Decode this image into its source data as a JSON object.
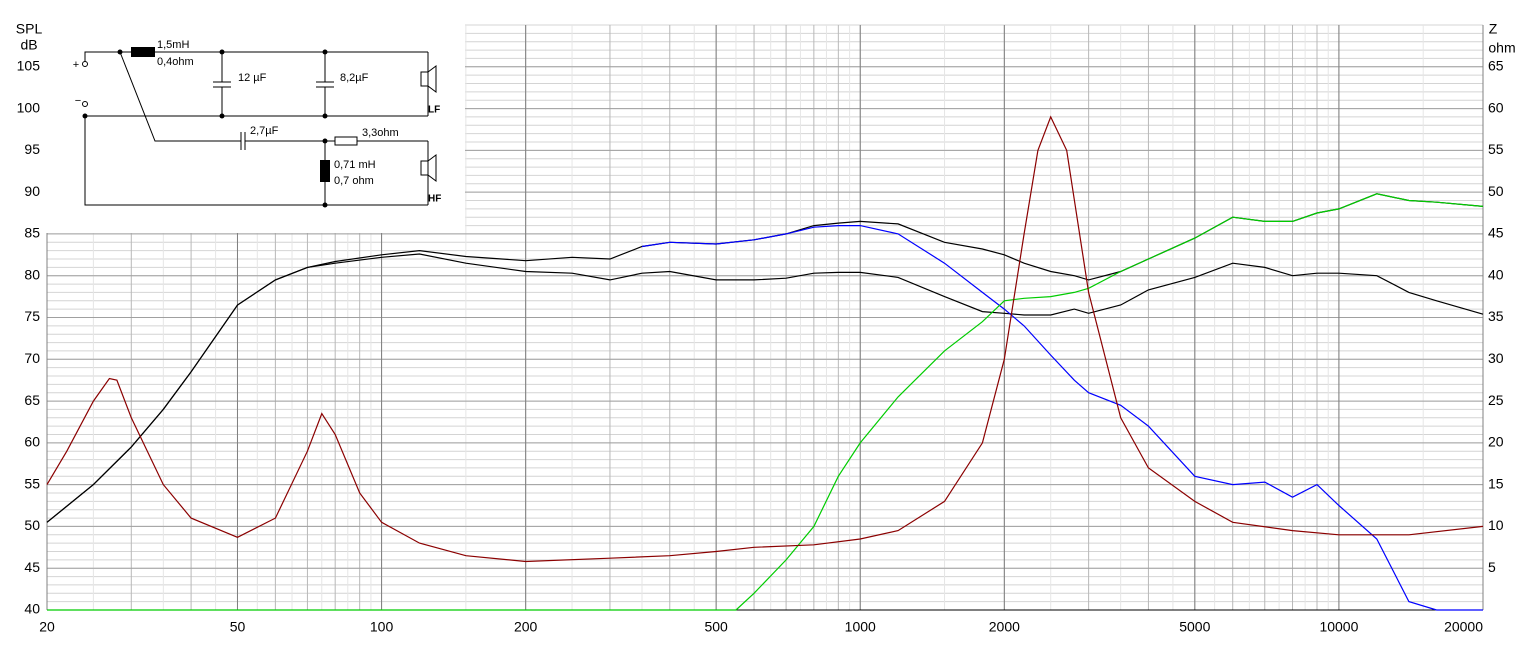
{
  "chart_data": {
    "type": "line",
    "xscale": "log",
    "grid": true,
    "minor_grid": true,
    "ylabel": [
      "SPL",
      "dB"
    ],
    "y2label": [
      "Z",
      "ohm"
    ],
    "xlim": [
      20,
      20000
    ],
    "xticks": [
      20,
      50,
      100,
      200,
      500,
      1000,
      2000,
      5000,
      10000,
      20000
    ],
    "ylim": [
      40,
      110
    ],
    "yticks": [
      40,
      45,
      50,
      55,
      60,
      65,
      70,
      75,
      80,
      85,
      90,
      95,
      100,
      105
    ],
    "y2lim": [
      0,
      70
    ],
    "y2ticks": [
      5,
      10,
      15,
      20,
      25,
      30,
      35,
      40,
      45,
      50,
      55,
      60,
      65
    ],
    "annotations": [
      "+",
      "−",
      "1,5mH",
      "0,4ohm",
      "12 µF",
      "8,2µF",
      "LF",
      "2,7µF",
      "3,3ohm",
      "0,71 mH",
      "0,7 ohm",
      "HF"
    ],
    "series": [
      {
        "color": "#000000",
        "x": [
          20,
          25,
          30,
          35,
          40,
          50,
          60,
          70,
          80,
          100,
          120,
          150,
          200,
          250,
          300,
          350,
          400,
          500,
          600,
          700,
          800,
          900,
          1000,
          1200,
          1500,
          1800,
          2000,
          2200,
          2500,
          2800,
          3000,
          3500,
          4000,
          5000,
          6000,
          7000,
          8000,
          9000,
          10000,
          12000,
          14000,
          16000,
          20000
        ],
        "values": [
          50.5,
          55,
          59.5,
          64,
          68.5,
          76.5,
          79.5,
          81,
          81.7,
          82.5,
          83,
          82.3,
          81.8,
          82.2,
          82,
          83.5,
          84,
          83.8,
          84.3,
          85,
          86,
          86.3,
          86.5,
          86.2,
          84,
          83.2,
          82.5,
          81.5,
          80.5,
          80,
          79.5,
          80.5,
          82,
          84.5,
          87,
          86.5,
          86.5,
          87.5,
          88,
          89.8,
          89,
          88.8,
          88.3
        ]
      },
      {
        "color": "#000000",
        "x": [
          20,
          25,
          30,
          35,
          40,
          50,
          60,
          70,
          80,
          100,
          120,
          150,
          200,
          250,
          300,
          350,
          400,
          500,
          600,
          700,
          800,
          900,
          1000,
          1200,
          1500,
          1800,
          2000,
          2200,
          2500,
          2800,
          3000,
          3500,
          4000,
          5000,
          6000,
          7000,
          8000,
          9000,
          10000,
          12000,
          14000,
          16000,
          20000
        ],
        "values": [
          50.5,
          55,
          59.5,
          64,
          68.5,
          76.5,
          79.5,
          81,
          81.5,
          82.2,
          82.6,
          81.5,
          80.5,
          80.3,
          79.5,
          80.3,
          80.5,
          79.5,
          79.5,
          79.7,
          80.3,
          80.4,
          80.4,
          79.8,
          77.5,
          75.7,
          75.5,
          75.3,
          75.3,
          76,
          75.5,
          76.5,
          78.3,
          79.8,
          81.5,
          81,
          80,
          80.3,
          80.3,
          80,
          78,
          77,
          75.4
        ]
      },
      {
        "color": "#0000ff",
        "x": [
          350,
          400,
          500,
          600,
          700,
          800,
          900,
          1000,
          1200,
          1500,
          1800,
          2000,
          2200,
          2500,
          2800,
          3000,
          3500,
          4000,
          5000,
          6000,
          7000,
          8000,
          9000,
          10000,
          12000,
          14000,
          16000,
          20000
        ],
        "values": [
          83.5,
          84,
          83.8,
          84.3,
          85,
          85.8,
          86,
          86,
          85,
          81.5,
          78,
          76,
          74,
          70.5,
          67.5,
          66,
          64.5,
          62,
          56,
          55,
          55.3,
          53.5,
          55,
          52.5,
          48.5,
          41,
          40,
          40
        ]
      },
      {
        "color": "#00cc00",
        "x": [
          20,
          550,
          600,
          700,
          800,
          900,
          1000,
          1200,
          1500,
          1800,
          2000,
          2200,
          2500,
          2800,
          3000,
          3500,
          4000,
          5000,
          6000,
          7000,
          8000,
          9000,
          10000,
          12000,
          14000,
          16000,
          20000
        ],
        "values": [
          40,
          40,
          42,
          46,
          50,
          56,
          60,
          65.5,
          71,
          74.5,
          77,
          77.3,
          77.5,
          78,
          78.5,
          80.5,
          82,
          84.5,
          87,
          86.5,
          86.5,
          87.5,
          88,
          89.8,
          89,
          88.8,
          88.3
        ]
      },
      {
        "color": "#8b0000",
        "axis": "y2",
        "x": [
          20,
          22,
          25,
          27,
          28,
          30,
          35,
          40,
          50,
          60,
          70,
          75,
          80,
          90,
          100,
          120,
          150,
          200,
          300,
          400,
          500,
          600,
          800,
          1000,
          1200,
          1500,
          1800,
          2000,
          2200,
          2350,
          2500,
          2700,
          3000,
          3500,
          4000,
          5000,
          6000,
          8000,
          10000,
          14000,
          20000
        ],
        "values": [
          15,
          19,
          25,
          27.7,
          27.5,
          23,
          15,
          11,
          8.7,
          11,
          19,
          23.5,
          21,
          14,
          10.5,
          8,
          6.5,
          5.8,
          6.2,
          6.5,
          7,
          7.5,
          7.8,
          8.5,
          9.5,
          13,
          20,
          30,
          45,
          55,
          59,
          55,
          38,
          23,
          17,
          13,
          10.5,
          9.5,
          9,
          9,
          10
        ]
      }
    ]
  }
}
